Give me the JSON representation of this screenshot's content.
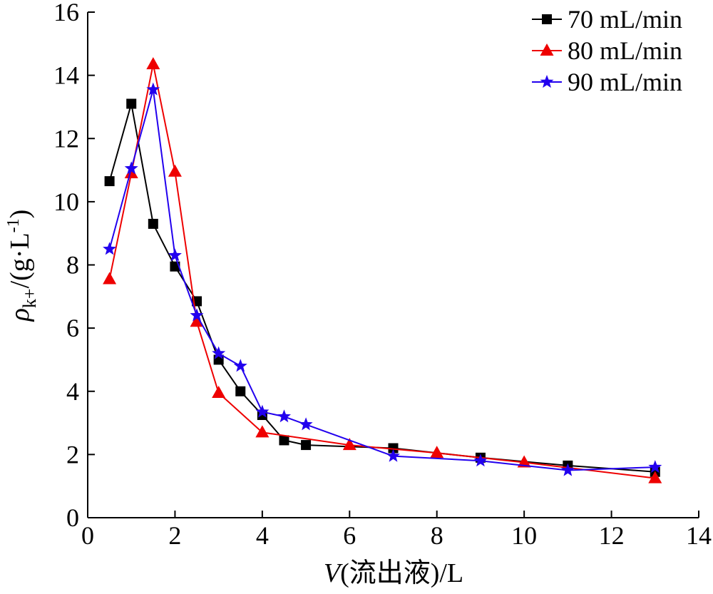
{
  "chart_data": {
    "type": "line",
    "xlabel": "V(流出液)/L",
    "ylabel": "ρk+/(g·L-1)",
    "ylabel_parts": {
      "symbol": "ρ",
      "subscript": "k+",
      "unit": "/(g·L",
      "superscript": "-1",
      "close": ")"
    },
    "xlabel_parts": {
      "symbol": "V",
      "rest": "(流出液)/L"
    },
    "xlim": [
      0,
      14
    ],
    "ylim": [
      0,
      16
    ],
    "x_ticks": [
      0,
      2,
      4,
      6,
      8,
      10,
      12,
      14
    ],
    "y_ticks": [
      0,
      2,
      4,
      6,
      8,
      10,
      12,
      14,
      16
    ],
    "grid": false,
    "legend_position": "top-right",
    "series": [
      {
        "name": "70 mL/min",
        "color": "#000000",
        "marker": "square",
        "x": [
          0.5,
          1.0,
          1.5,
          2.0,
          2.5,
          3.0,
          3.5,
          4.0,
          4.5,
          5.0,
          7.0,
          9.0,
          11.0,
          13.0
        ],
        "y": [
          10.65,
          13.1,
          9.3,
          7.95,
          6.85,
          5.0,
          4.0,
          3.25,
          2.45,
          2.3,
          2.2,
          1.9,
          1.65,
          1.45
        ]
      },
      {
        "name": "80 mL/min",
        "color": "#ee0000",
        "marker": "triangle",
        "x": [
          0.5,
          1.0,
          1.5,
          2.0,
          2.5,
          3.0,
          4.0,
          6.0,
          8.0,
          10.0,
          13.0
        ],
        "y": [
          7.55,
          10.9,
          14.35,
          10.95,
          6.2,
          3.95,
          2.7,
          2.3,
          2.05,
          1.75,
          1.25
        ]
      },
      {
        "name": "90 mL/min",
        "color": "#2200ee",
        "marker": "star",
        "x": [
          0.5,
          1.0,
          1.5,
          2.0,
          2.5,
          3.0,
          3.5,
          4.0,
          4.5,
          5.0,
          7.0,
          9.0,
          11.0,
          13.0
        ],
        "y": [
          8.5,
          11.05,
          13.55,
          8.3,
          6.4,
          5.2,
          4.8,
          3.35,
          3.2,
          2.95,
          1.95,
          1.8,
          1.5,
          1.6
        ]
      }
    ]
  }
}
